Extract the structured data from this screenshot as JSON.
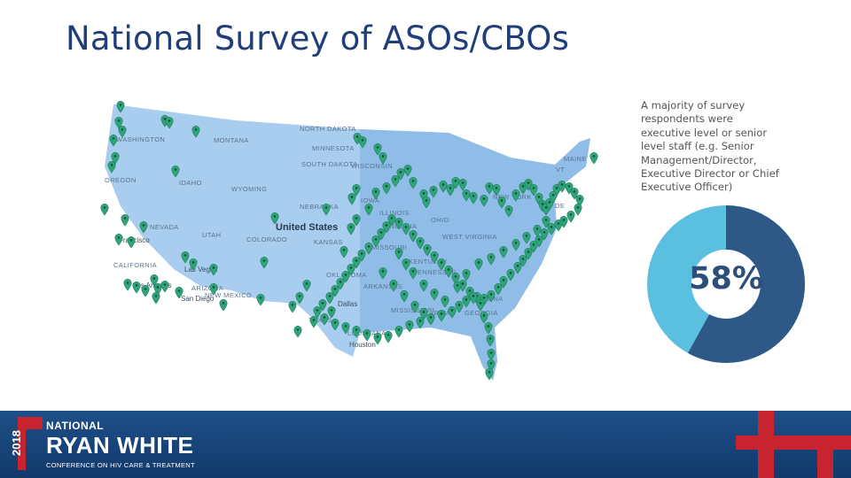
{
  "slide": {
    "title": "National Survey of ASOs/CBOs",
    "description": "A majority of survey respondents were executive level or senior level staff (e.g. Senior Management/Director, Executive Director or Chief Executive Officer)",
    "donut": {
      "percent_label": "58%",
      "value": 0.58,
      "colors": {
        "primary": "#2e5987",
        "secondary": "#5bbfe0"
      }
    }
  },
  "map": {
    "country_label": "United States",
    "state_labels": [
      "WASHINGTON",
      "MONTANA",
      "NORTH DAKOTA",
      "MINNESOTA",
      "WISCONSIN",
      "SOUTH DAKOTA",
      "OREGON",
      "IDAHO",
      "WYOMING",
      "NEBRASKA",
      "IOWA",
      "ILLINOIS",
      "INDIANA",
      "OHIO",
      "NEVADA",
      "UTAH",
      "COLORADO",
      "KANSAS",
      "MISSOURI",
      "CALIFORNIA",
      "ARIZONA",
      "NEW MEXICO",
      "OKLAHOMA",
      "ARKANSAS",
      "TENNESSEE",
      "TEXAS",
      "LOUISIANA",
      "ALABAMA",
      "CAROLINA",
      "WEST VIRGINIA",
      "KENTUCKY",
      "NEW YORK",
      "MAINE",
      "VT",
      "DE",
      "GEORGIA",
      "MISSISSIPPI"
    ],
    "city_labels": [
      "Francisco",
      "Las Vegas",
      "Los Angeles",
      "San Diego",
      "Dallas",
      "Houston"
    ],
    "marker_color": "#2fa57c"
  },
  "footer": {
    "year": "2018",
    "brand_top": "NATIONAL",
    "brand_main": "RYAN WHITE",
    "brand_sub": "CONFERENCE ON HIV CARE & TREATMENT"
  }
}
